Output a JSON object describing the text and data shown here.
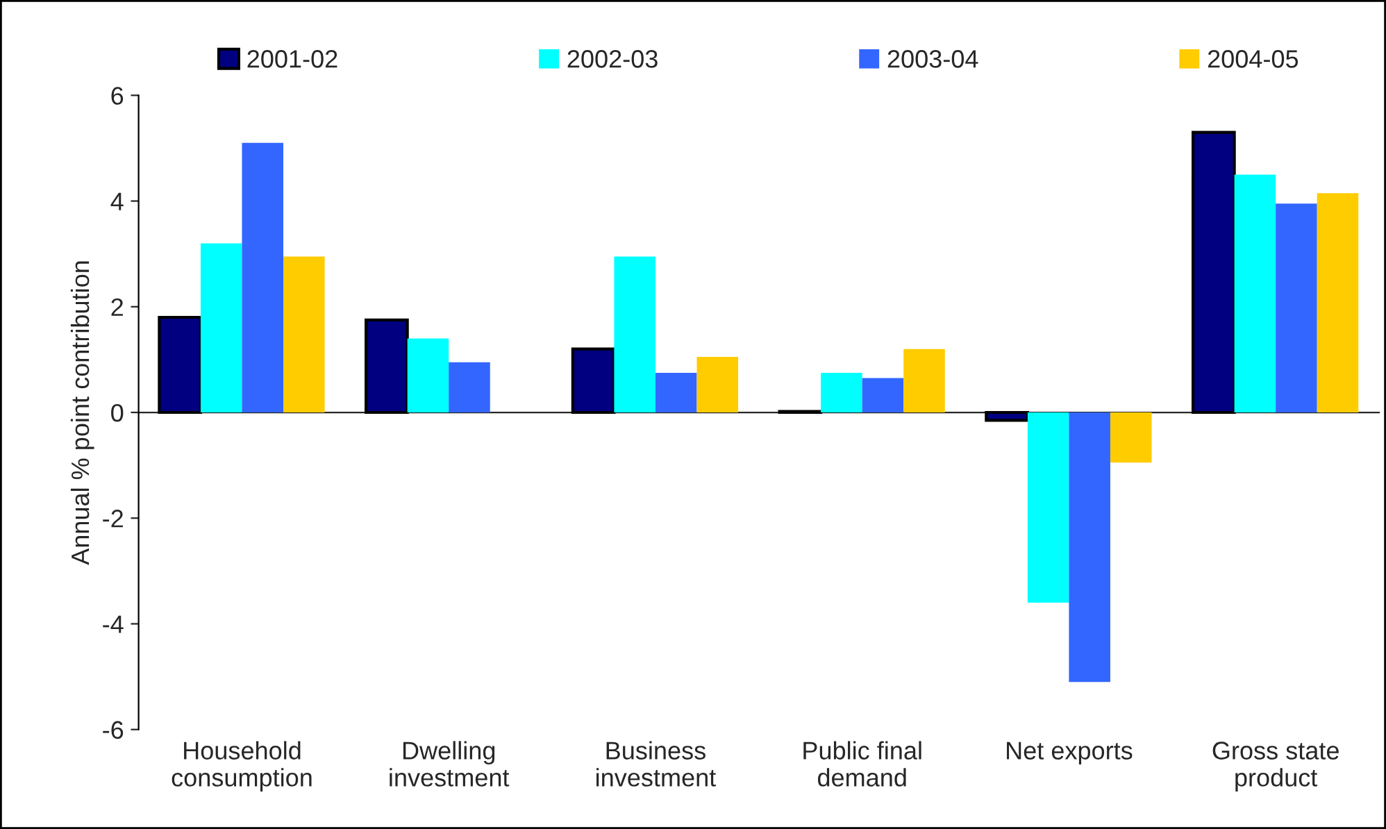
{
  "chart_data": {
    "type": "bar",
    "ylabel": "Annual % point contribution",
    "categories": [
      "Household\nconsumption",
      "Dwelling\ninvestment",
      "Business\ninvestment",
      "Public final\ndemand",
      "Net exports",
      "Gross state\nproduct"
    ],
    "series": [
      {
        "name": "2001-02",
        "color": "#000080",
        "values": [
          1.8,
          1.75,
          1.2,
          0.02,
          -0.15,
          5.3
        ]
      },
      {
        "name": "2002-03",
        "color": "#00ffff",
        "values": [
          3.2,
          1.4,
          2.95,
          0.75,
          -3.6,
          4.5
        ]
      },
      {
        "name": "2003-04",
        "color": "#3366ff",
        "values": [
          5.1,
          0.95,
          0.75,
          0.65,
          -5.1,
          3.95
        ]
      },
      {
        "name": "2004-05",
        "color": "#ffcc00",
        "values": [
          2.95,
          null,
          1.05,
          1.2,
          -0.95,
          4.15
        ]
      }
    ],
    "ylim": [
      -6,
      6
    ],
    "yticks": [
      -6,
      -4,
      -2,
      0,
      2,
      4,
      6
    ],
    "legend": "top"
  }
}
